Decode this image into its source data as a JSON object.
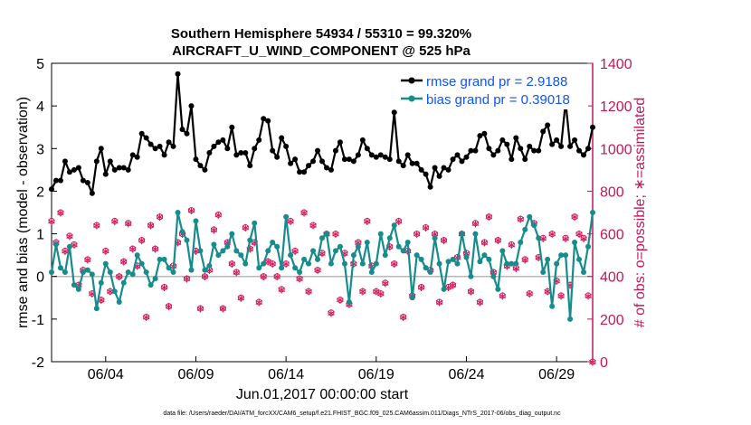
{
  "chart_data": {
    "type": "line",
    "title": [
      "Southern Hemisphere 54934 / 55310 = 99.320%",
      "AIRCRAFT_U_WIND_COMPONENT @ 525 hPa"
    ],
    "xlabel": "Jun.01,2017 00:00:00 start",
    "ylabel_left": "rmse and bias (model - observation)",
    "ylabel_right": "# of obs: o=possible; ∗=assimilated",
    "xlim": [
      0,
      120
    ],
    "ylim_left": [
      -2,
      5
    ],
    "ylim_right": [
      0,
      1400
    ],
    "x_ticks": [
      {
        "x": 12,
        "label": "06/04"
      },
      {
        "x": 32,
        "label": "06/09"
      },
      {
        "x": 52,
        "label": "06/14"
      },
      {
        "x": 72,
        "label": "06/19"
      },
      {
        "x": 92,
        "label": "06/24"
      },
      {
        "x": 112,
        "label": "06/29"
      }
    ],
    "y_ticks_left": [
      -2,
      -1,
      0,
      1,
      2,
      3,
      4,
      5
    ],
    "y_ticks_right": [
      0,
      200,
      400,
      600,
      800,
      1000,
      1200,
      1400
    ],
    "legend_location": "top-right",
    "series": [
      {
        "name": "rmse grand pr = 2.9188",
        "color": "#000000",
        "values": [
          2.05,
          2.25,
          2.25,
          2.7,
          2.45,
          2.5,
          2.55,
          2.25,
          2.2,
          1.95,
          2.7,
          3.0,
          2.4,
          2.7,
          2.5,
          2.55,
          2.55,
          2.5,
          2.85,
          2.8,
          3.35,
          3.25,
          3.1,
          3.0,
          3.05,
          2.85,
          3.15,
          3.05,
          4.75,
          3.45,
          3.35,
          4.0,
          2.75,
          2.6,
          2.5,
          2.9,
          3.05,
          3.15,
          3.2,
          3.0,
          3.5,
          2.85,
          2.9,
          2.9,
          2.6,
          3.0,
          3.2,
          3.7,
          3.65,
          2.95,
          2.8,
          3.25,
          3.05,
          2.65,
          2.75,
          2.45,
          2.45,
          2.6,
          2.7,
          2.95,
          2.7,
          2.55,
          2.5,
          2.95,
          3.15,
          2.75,
          2.75,
          2.7,
          2.85,
          3.2,
          3.0,
          2.85,
          2.8,
          2.85,
          2.8,
          2.75,
          3.85,
          2.7,
          2.6,
          2.85,
          2.65,
          2.65,
          2.5,
          2.4,
          2.1,
          2.55,
          2.35,
          2.55,
          2.5,
          2.75,
          2.85,
          2.7,
          2.8,
          2.95,
          2.95,
          3.3,
          3.35,
          3.0,
          2.85,
          2.95,
          3.2,
          3.1,
          2.75,
          3.25,
          3.0,
          2.75,
          3.05,
          2.95,
          2.95,
          3.4,
          3.55,
          3.1,
          3.2,
          3.05,
          4.1,
          3.05,
          3.2,
          2.95,
          2.85,
          3.0,
          3.5
        ],
        "label": "rmse grand pr = 2.9188"
      },
      {
        "name": "bias grand pr = 0.39018",
        "color": "#168c8c",
        "values": [
          0.1,
          0.75,
          0.2,
          0.1,
          0.7,
          -0.2,
          -0.3,
          0.1,
          0.15,
          0.05,
          -0.75,
          -0.15,
          0.3,
          0.1,
          -0.35,
          -0.6,
          -0.15,
          0.1,
          0.05,
          0.5,
          0.3,
          0.1,
          -0.2,
          -0.05,
          0.4,
          0.4,
          0.2,
          0.1,
          1.5,
          1.05,
          0.85,
          0.15,
          1.3,
          0.6,
          0.15,
          0.25,
          0.75,
          0.5,
          0.6,
          0.7,
          1.0,
          0.6,
          0.5,
          0.3,
          0.85,
          1.25,
          0.2,
          0.3,
          0.6,
          0.8,
          0.7,
          0.2,
          1.4,
          0.5,
          0.2,
          0.1,
          0.4,
          0.3,
          0.6,
          0.4,
          0.9,
          1.0,
          0.3,
          0.6,
          0.7,
          0.3,
          -0.6,
          0.5,
          0.7,
          0.3,
          0.8,
          0.1,
          0.3,
          1.0,
          0.5,
          0.9,
          1.2,
          0.7,
          0.6,
          0.8,
          -0.5,
          0.5,
          0.4,
          0.2,
          0.1,
          0.9,
          0.3,
          -0.3,
          0.35,
          0.4,
          0.3,
          1.0,
          0.45,
          0.0,
          1.0,
          0.35,
          0.5,
          0.4,
          0.0,
          -0.3,
          0.6,
          0.3,
          0.3,
          0.3,
          0.8,
          1.1,
          1.4,
          1.2,
          0.9,
          0.1,
          0.4,
          -0.7,
          0.3,
          0.5,
          0.5,
          -1.0,
          0.8,
          0.4,
          0.1,
          0.7,
          1.5
        ],
        "label": "bias grand pr = 0.39018"
      },
      {
        "name": "# of obs possible/assimilated",
        "color": "#d31a5c",
        "values": [
          660,
          560,
          700,
          520,
          590,
          550,
          360,
          430,
          480,
          320,
          640,
          290,
          520,
          330,
          660,
          400,
          470,
          650,
          530,
          450,
          570,
          210,
          640,
          530,
          680,
          350,
          260,
          450,
          560,
          600,
          390,
          710,
          520,
          250,
          400,
          430,
          620,
          690,
          250,
          560,
          460,
          420,
          300,
          630,
          530,
          560,
          280,
          400,
          470,
          460,
          400,
          340,
          460,
          660,
          520,
          390,
          700,
          330,
          640,
          430,
          510,
          600,
          230,
          600,
          290,
          510,
          270,
          460,
          560,
          330,
          660,
          450,
          330,
          320,
          370,
          540,
          460,
          660,
          210,
          520,
          310,
          600,
          350,
          630,
          430,
          600,
          280,
          570,
          350,
          360,
          490,
          600,
          510,
          330,
          650,
          280,
          560,
          680,
          420,
          570,
          310,
          450,
          550,
          440,
          670,
          480,
          320,
          650,
          490,
          580,
          330,
          600,
          380,
          310,
          580,
          360,
          680,
          600,
          580,
          310,
          0
        ]
      }
    ],
    "right_axis_last_value": 0
  },
  "footnote": "data file: /Users/raeder/DAI/ATM_forcXX/CAM6_setup/f.e21.FHIST_BGC.f09_025.CAM6assim.011/Diags_NTrS_2017-06/obs_diag_output.nc"
}
